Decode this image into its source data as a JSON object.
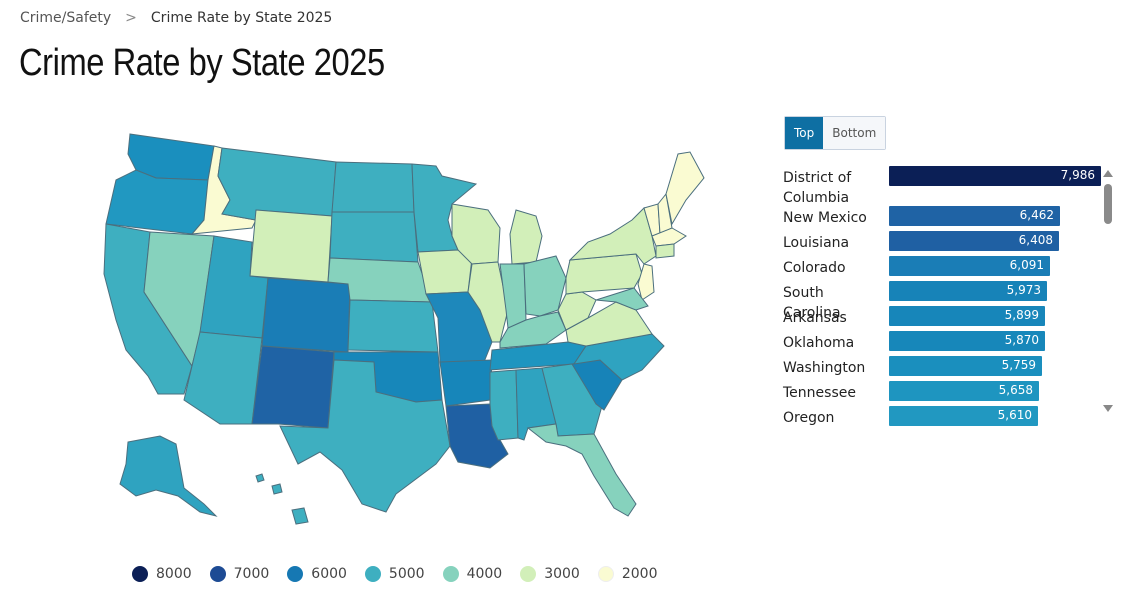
{
  "breadcrumb": {
    "parent": "Crime/Safety",
    "separator": ">",
    "current": "Crime Rate by State 2025"
  },
  "page_title": "Crime Rate by State 2025",
  "toggle": {
    "top_label": "Top",
    "bottom_label": "Bottom",
    "active": "top"
  },
  "legend": [
    {
      "label": "8000",
      "color": "#0b1f56"
    },
    {
      "label": "7000",
      "color": "#1d4b94"
    },
    {
      "label": "6000",
      "color": "#1678b3"
    },
    {
      "label": "5000",
      "color": "#3eafc0"
    },
    {
      "label": "4000",
      "color": "#86d2bd"
    },
    {
      "label": "3000",
      "color": "#d2efb9"
    },
    {
      "label": "2000",
      "color": "#fafbd2"
    }
  ],
  "chart_data": {
    "type": "bar",
    "categories": [
      "District of Columbia",
      "New Mexico",
      "Louisiana",
      "Colorado",
      "South Carolina",
      "Arkansas",
      "Oklahoma",
      "Washington",
      "Tennessee",
      "Oregon"
    ],
    "values": [
      7986,
      6462,
      6408,
      6091,
      5973,
      5899,
      5870,
      5759,
      5658,
      5610
    ],
    "value_labels": [
      "7,986",
      "6,462",
      "6,408",
      "6,091",
      "5,973",
      "5,899",
      "5,870",
      "5,759",
      "5,658",
      "5,610"
    ],
    "colors": [
      "#0b1f56",
      "#1f63a5",
      "#1f60a3",
      "#1a7db6",
      "#1783b8",
      "#1786ba",
      "#1787ba",
      "#1a8fbe",
      "#1e95c0",
      "#2198c1"
    ],
    "xlim": [
      0,
      8000
    ]
  }
}
